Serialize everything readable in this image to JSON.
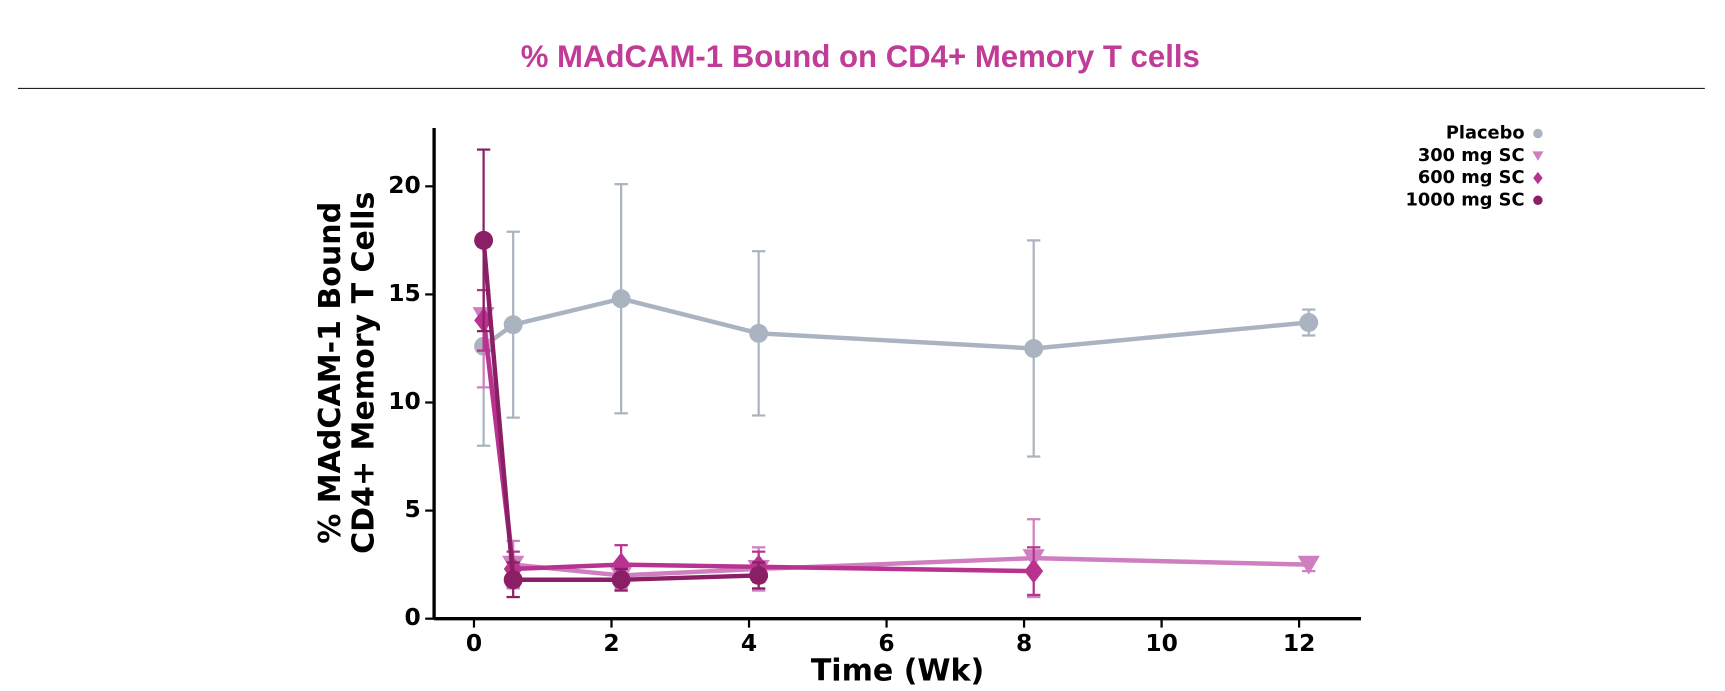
{
  "chart_data": {
    "type": "line",
    "title": "% MAdCAM-1 Bound on CD4+ Memory T cells",
    "xlabel": "Time (Wk)",
    "ylabel": [
      "% MAdCAM-1 Bound",
      "CD4+ Memory T Cells"
    ],
    "xlim": [
      -0.58,
      12.9
    ],
    "ylim": [
      0,
      22.7
    ],
    "xticks": [
      0,
      2,
      4,
      6,
      8,
      10,
      12
    ],
    "yticks": [
      0,
      5,
      10,
      15,
      20
    ],
    "legend": "upper right",
    "series": [
      {
        "name": "Placebo",
        "color": "#aab4c0",
        "marker": "circle",
        "x": [
          0.14,
          0.57,
          2.14,
          4.14,
          8.14,
          12.14
        ],
        "values": [
          12.6,
          13.6,
          14.8,
          13.2,
          12.5,
          13.7
        ],
        "errors": [
          4.6,
          4.3,
          5.3,
          3.8,
          5.0,
          0.6
        ]
      },
      {
        "name": "300 mg SC",
        "color": "#cf7fbf",
        "marker": "triangle-down",
        "x": [
          0.14,
          0.57,
          2.14,
          4.14,
          8.14,
          12.14
        ],
        "values": [
          14.0,
          2.5,
          2.0,
          2.3,
          2.8,
          2.5
        ],
        "errors": [
          3.3,
          1.1,
          0.6,
          1.0,
          1.8,
          0.3
        ]
      },
      {
        "name": "600 mg SC",
        "color": "#b8338f",
        "marker": "diamond",
        "x": [
          0.14,
          0.57,
          2.14,
          4.14,
          8.14
        ],
        "values": [
          13.8,
          2.3,
          2.5,
          2.4,
          2.2
        ],
        "errors": [
          1.4,
          0.8,
          0.9,
          0.7,
          1.1
        ]
      },
      {
        "name": "1000 mg SC",
        "color": "#8b1f66",
        "marker": "circle",
        "x": [
          0.14,
          0.57,
          2.14,
          4.14
        ],
        "values": [
          17.5,
          1.8,
          1.8,
          2.0
        ],
        "errors": [
          4.2,
          0.8,
          0.5,
          0.6
        ]
      }
    ]
  }
}
